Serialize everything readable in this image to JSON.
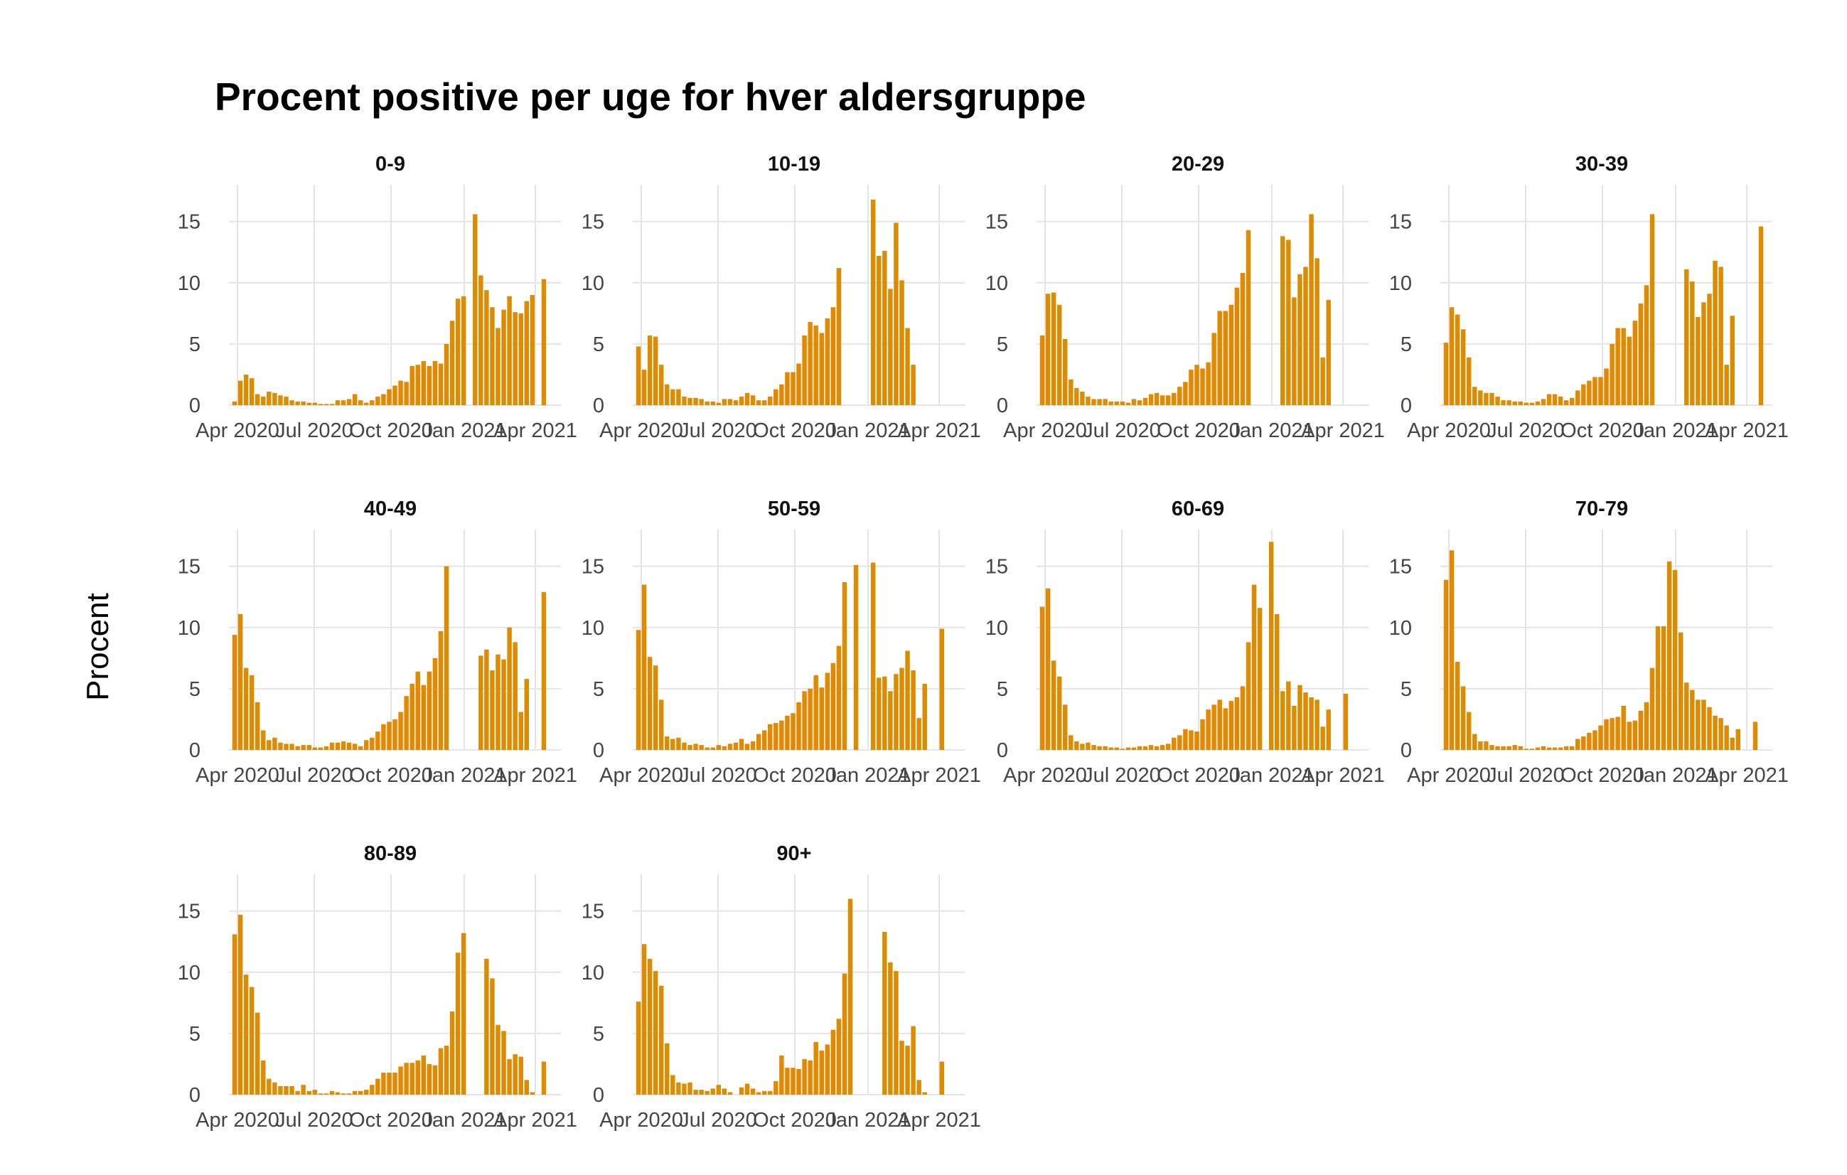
{
  "chart_data": {
    "type": "bar",
    "title": "Procent positive per uge for hver aldersgruppe",
    "ylabel": "Procent",
    "xlabel": "",
    "ylim": [
      0,
      18
    ],
    "y_ticks": [
      0,
      5,
      10,
      15
    ],
    "x_ticks": [
      "Apr 2020",
      "Jul 2020",
      "Oct 2020",
      "Jan 2021",
      "Apr 2021"
    ],
    "x_range_weeks": [
      0,
      56
    ],
    "grid": true,
    "bar_color": "#E08A00",
    "facets": [
      {
        "name": "0-9",
        "values": [
          0.3,
          2.0,
          2.5,
          2.2,
          0.9,
          0.7,
          1.1,
          1.0,
          0.8,
          0.7,
          0.4,
          0.3,
          0.3,
          0.2,
          0.2,
          0.1,
          0.1,
          0.1,
          0.4,
          0.4,
          0.5,
          0.9,
          0.4,
          0.2,
          0.4,
          0.7,
          0.9,
          1.3,
          1.6,
          2.0,
          1.9,
          3.2,
          3.3,
          3.6,
          3.2,
          3.6,
          3.4,
          5.0,
          6.9,
          8.7,
          8.9,
          null,
          15.6,
          10.6,
          9.4,
          8.0,
          6.3,
          7.8,
          8.9,
          7.6,
          7.5,
          8.5,
          9.0,
          null,
          10.3,
          null,
          null
        ]
      },
      {
        "name": "10-19",
        "values": [
          4.8,
          2.9,
          5.7,
          5.6,
          3.3,
          1.7,
          1.3,
          1.3,
          0.7,
          0.6,
          0.6,
          0.5,
          0.3,
          0.3,
          0.2,
          0.5,
          0.5,
          0.4,
          0.7,
          1.0,
          0.8,
          0.4,
          0.4,
          0.7,
          1.3,
          1.7,
          2.7,
          2.7,
          3.4,
          5.7,
          6.8,
          6.5,
          5.9,
          7.1,
          8.0,
          11.2,
          null,
          null,
          null,
          null,
          null,
          16.8,
          12.2,
          12.6,
          9.5,
          14.9,
          10.2,
          6.3,
          3.3,
          null,
          null,
          null,
          null,
          null,
          null,
          null,
          null
        ]
      },
      {
        "name": "20-29",
        "values": [
          5.7,
          9.1,
          9.2,
          8.2,
          5.4,
          2.1,
          1.4,
          1.1,
          0.7,
          0.5,
          0.5,
          0.5,
          0.3,
          0.3,
          0.3,
          0.2,
          0.5,
          0.4,
          0.6,
          0.9,
          1.0,
          0.8,
          0.8,
          1.0,
          1.5,
          1.9,
          2.9,
          3.3,
          3.0,
          3.5,
          5.9,
          7.7,
          7.7,
          8.2,
          9.6,
          10.8,
          14.3,
          null,
          null,
          null,
          null,
          null,
          13.8,
          13.5,
          8.8,
          10.7,
          11.3,
          15.6,
          12.0,
          3.9,
          8.6,
          null,
          null,
          null,
          null,
          null,
          null
        ]
      },
      {
        "name": "30-39",
        "values": [
          5.1,
          8.0,
          7.4,
          6.2,
          3.9,
          1.5,
          1.2,
          1.0,
          1.0,
          0.7,
          0.4,
          0.4,
          0.3,
          0.3,
          0.2,
          0.2,
          0.3,
          0.5,
          0.9,
          0.9,
          0.7,
          0.4,
          0.6,
          1.2,
          1.7,
          2.0,
          2.3,
          2.3,
          3.0,
          5.0,
          6.3,
          6.3,
          5.6,
          6.9,
          8.3,
          9.8,
          15.6,
          null,
          null,
          null,
          null,
          null,
          11.1,
          10.1,
          7.2,
          8.4,
          9.1,
          11.8,
          11.3,
          3.3,
          7.3,
          null,
          null,
          null,
          null,
          14.6,
          null
        ]
      },
      {
        "name": "40-49",
        "values": [
          9.4,
          11.1,
          6.7,
          6.1,
          3.9,
          1.6,
          0.8,
          1.0,
          0.6,
          0.5,
          0.5,
          0.3,
          0.4,
          0.4,
          0.2,
          0.2,
          0.3,
          0.6,
          0.6,
          0.7,
          0.6,
          0.5,
          0.3,
          0.8,
          1.0,
          1.5,
          2.1,
          2.3,
          2.5,
          3.1,
          4.4,
          5.4,
          6.4,
          5.3,
          6.4,
          7.5,
          9.7,
          15.0,
          null,
          null,
          null,
          null,
          null,
          7.7,
          8.2,
          6.5,
          7.8,
          7.4,
          10.0,
          8.8,
          3.1,
          5.8,
          null,
          null,
          12.9,
          null,
          null
        ]
      },
      {
        "name": "50-59",
        "values": [
          9.8,
          13.5,
          7.6,
          6.9,
          4.1,
          1.1,
          0.9,
          1.0,
          0.6,
          0.4,
          0.5,
          0.4,
          0.2,
          0.2,
          0.4,
          0.3,
          0.5,
          0.6,
          0.9,
          0.5,
          0.7,
          1.3,
          1.6,
          2.1,
          2.2,
          2.4,
          2.8,
          3.0,
          3.9,
          4.8,
          5.0,
          6.1,
          5.1,
          6.3,
          7.1,
          8.5,
          13.7,
          null,
          15.1,
          null,
          null,
          15.3,
          5.9,
          6.0,
          4.8,
          6.2,
          6.7,
          8.1,
          6.5,
          2.6,
          5.4,
          null,
          null,
          9.9,
          null,
          null,
          null
        ]
      },
      {
        "name": "60-69",
        "values": [
          11.7,
          13.2,
          7.3,
          6.0,
          3.7,
          1.2,
          0.7,
          0.5,
          0.6,
          0.4,
          0.3,
          0.3,
          0.2,
          0.2,
          0.1,
          0.2,
          0.2,
          0.3,
          0.3,
          0.4,
          0.3,
          0.4,
          0.5,
          1.0,
          1.2,
          1.7,
          1.6,
          1.5,
          2.5,
          3.3,
          3.7,
          4.1,
          3.4,
          4.0,
          4.3,
          5.2,
          8.8,
          13.5,
          11.6,
          null,
          17.0,
          11.1,
          4.8,
          5.6,
          3.6,
          5.3,
          4.7,
          4.3,
          4.1,
          1.9,
          3.3,
          null,
          null,
          4.6,
          null,
          null,
          null
        ]
      },
      {
        "name": "70-79",
        "values": [
          13.9,
          16.3,
          7.2,
          5.2,
          3.1,
          1.3,
          0.7,
          0.7,
          0.4,
          0.3,
          0.3,
          0.3,
          0.4,
          0.3,
          0.1,
          0.1,
          0.2,
          0.3,
          0.2,
          0.2,
          0.2,
          0.3,
          0.3,
          0.9,
          1.1,
          1.4,
          1.6,
          2.0,
          2.5,
          2.6,
          2.7,
          3.6,
          2.3,
          2.4,
          3.2,
          3.9,
          6.7,
          10.1,
          10.1,
          15.4,
          14.7,
          9.6,
          5.5,
          4.9,
          4.1,
          4.1,
          3.5,
          2.8,
          2.6,
          2.0,
          1.0,
          1.7,
          null,
          null,
          2.3,
          null,
          null
        ]
      },
      {
        "name": "80-89",
        "values": [
          13.1,
          14.7,
          9.8,
          8.8,
          6.7,
          2.8,
          1.3,
          1.0,
          0.7,
          0.7,
          0.7,
          0.3,
          0.8,
          0.3,
          0.4,
          0.1,
          0.1,
          0.3,
          0.2,
          0.1,
          0.1,
          0.3,
          0.3,
          0.4,
          0.8,
          1.3,
          1.8,
          1.8,
          1.8,
          2.3,
          2.6,
          2.6,
          2.8,
          3.2,
          2.5,
          2.4,
          3.8,
          4.0,
          6.8,
          11.6,
          13.2,
          null,
          null,
          null,
          11.1,
          9.5,
          5.7,
          5.2,
          2.9,
          3.3,
          3.1,
          1.2,
          0.2,
          null,
          2.7,
          null,
          null
        ]
      },
      {
        "name": "90+",
        "values": [
          7.6,
          12.3,
          11.1,
          10.1,
          8.9,
          4.2,
          1.6,
          1.0,
          0.9,
          1.0,
          0.4,
          0.4,
          0.3,
          0.5,
          0.8,
          0.5,
          0.2,
          null,
          0.6,
          0.9,
          0.5,
          0.2,
          0.3,
          0.3,
          1.1,
          3.2,
          2.2,
          2.2,
          2.1,
          2.9,
          2.8,
          4.3,
          3.6,
          4.1,
          5.3,
          6.2,
          9.9,
          16.0,
          null,
          null,
          null,
          null,
          null,
          13.3,
          10.8,
          10.1,
          4.4,
          4.0,
          5.6,
          1.2,
          0.2,
          null,
          null,
          2.7,
          null,
          null,
          null
        ]
      }
    ]
  }
}
